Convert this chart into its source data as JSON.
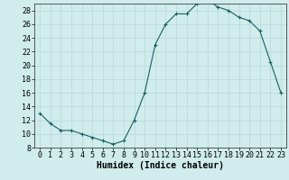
{
  "x": [
    0,
    1,
    2,
    3,
    4,
    5,
    6,
    7,
    8,
    9,
    10,
    11,
    12,
    13,
    14,
    15,
    16,
    17,
    18,
    19,
    20,
    21,
    22,
    23
  ],
  "y": [
    13,
    11.5,
    10.5,
    10.5,
    10,
    9.5,
    9,
    8.5,
    9,
    12,
    16,
    23,
    26,
    27.5,
    27.5,
    29,
    29.5,
    28.5,
    28,
    27,
    26.5,
    25,
    20.5,
    16
  ],
  "line_color": "#1a6060",
  "marker": "+",
  "marker_size": 3,
  "marker_lw": 0.8,
  "line_width": 0.8,
  "bg_color": "#d0ecec",
  "grid_color": "#b8d8d8",
  "xlabel": "Humidex (Indice chaleur)",
  "xlim": [
    -0.5,
    23.5
  ],
  "ylim": [
    8,
    29
  ],
  "yticks": [
    8,
    10,
    12,
    14,
    16,
    18,
    20,
    22,
    24,
    26,
    28
  ],
  "xticks": [
    0,
    1,
    2,
    3,
    4,
    5,
    6,
    7,
    8,
    9,
    10,
    11,
    12,
    13,
    14,
    15,
    16,
    17,
    18,
    19,
    20,
    21,
    22,
    23
  ],
  "label_fontsize": 7,
  "tick_fontsize": 6
}
